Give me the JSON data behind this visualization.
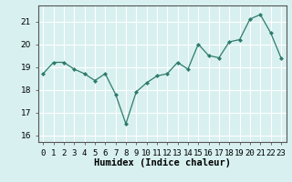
{
  "x": [
    0,
    1,
    2,
    3,
    4,
    5,
    6,
    7,
    8,
    9,
    10,
    11,
    12,
    13,
    14,
    15,
    16,
    17,
    18,
    19,
    20,
    21,
    22,
    23
  ],
  "y": [
    18.7,
    19.2,
    19.2,
    18.9,
    18.7,
    18.4,
    18.7,
    17.8,
    16.5,
    17.9,
    18.3,
    18.6,
    18.7,
    19.2,
    18.9,
    20.0,
    19.5,
    19.4,
    20.1,
    20.2,
    21.1,
    21.3,
    20.5,
    19.4
  ],
  "line_color": "#2e7b6b",
  "marker": "D",
  "marker_size": 2.0,
  "background_color": "#d8f0f0",
  "grid_color": "#ffffff",
  "ylim": [
    15.7,
    21.7
  ],
  "xlim": [
    -0.5,
    23.5
  ],
  "yticks": [
    16,
    17,
    18,
    19,
    20,
    21
  ],
  "xtick_labels": [
    "0",
    "1",
    "2",
    "3",
    "4",
    "5",
    "6",
    "7",
    "8",
    "9",
    "10",
    "11",
    "12",
    "13",
    "14",
    "15",
    "16",
    "17",
    "18",
    "19",
    "20",
    "21",
    "22",
    "23"
  ],
  "xlabel": "Humidex (Indice chaleur)",
  "xlabel_fontsize": 7.5,
  "tick_fontsize": 6.5,
  "linewidth": 0.9
}
